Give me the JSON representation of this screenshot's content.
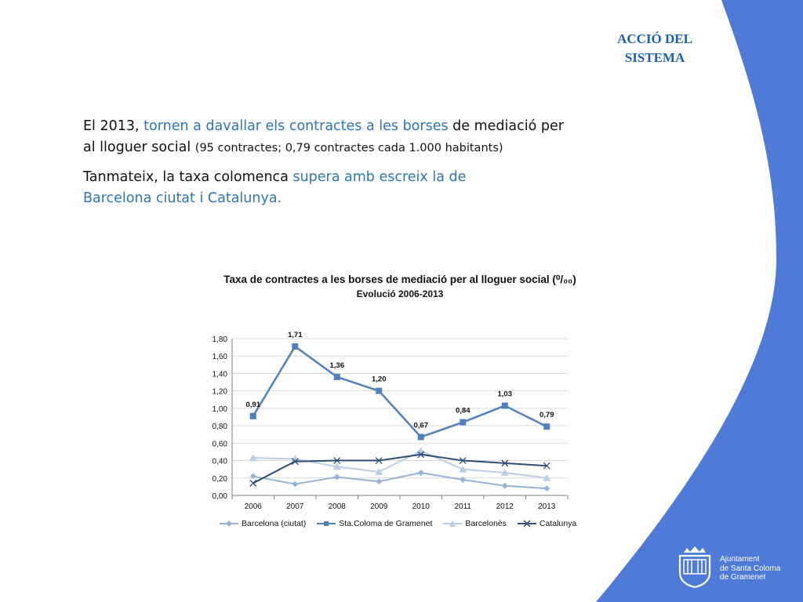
{
  "section_title_line1": "ACCIÓ DEL",
  "section_title_line2": "SISTEMA",
  "intro1": {
    "p1": "El 2013,",
    "h1": "tornen a davallar els contractes a les borses",
    "p2": "de mediació per al lloguer social",
    "small": "(95 contractes; 0,79 contractes cada 1.000 habitants)"
  },
  "intro2": {
    "p1": "Tanmateix, la taxa colomenca",
    "h1": "supera amb escreix la de Barcelona ciutat i Catalunya."
  },
  "chart_title": "Taxa de contractes a les borses de mediació per al lloguer social (⁰/₀₀)",
  "chart_subtitle": "Evolució 2006-2013",
  "logo_text": [
    "Ajuntament",
    "de Santa Coloma",
    "de Gramenet"
  ],
  "colors": {
    "accent_blue": "#4e7bd8",
    "barcelona": "#95b3d7",
    "santa_coloma": "#4f81bd",
    "barcelones": "#b9cde5",
    "catalunya": "#2c4d75"
  },
  "chart_data": {
    "type": "line",
    "categories": [
      "2006",
      "2007",
      "2008",
      "2009",
      "2010",
      "2011",
      "2012",
      "2013"
    ],
    "ylim": [
      0,
      1.8
    ],
    "yticks": [
      "0,00",
      "0,20",
      "0,40",
      "0,60",
      "0,80",
      "1,00",
      "1,20",
      "1,40",
      "1,60",
      "1,80"
    ],
    "grid": true,
    "legend_position": "bottom",
    "series": [
      {
        "name": "Barcelona (ciutat)",
        "marker": "diamond",
        "color": "#95b3d7",
        "values": [
          0.22,
          0.13,
          0.21,
          0.16,
          0.26,
          0.18,
          0.11,
          0.08
        ]
      },
      {
        "name": "Sta.Coloma de Gramenet",
        "marker": "square",
        "color": "#4f81bd",
        "values": [
          0.91,
          1.71,
          1.36,
          1.2,
          0.67,
          0.84,
          1.03,
          0.79
        ],
        "labels": [
          "0,91",
          "1,71",
          "1,36",
          "1,20",
          "0,67",
          "0,84",
          "1,03",
          "0,79"
        ]
      },
      {
        "name": "Barcelonès",
        "marker": "triangle",
        "color": "#b9cde5",
        "values": [
          0.43,
          0.42,
          0.33,
          0.27,
          0.51,
          0.3,
          0.26,
          0.2
        ]
      },
      {
        "name": "Catalunya",
        "marker": "x",
        "color": "#2c4d75",
        "values": [
          0.14,
          0.39,
          0.4,
          0.4,
          0.47,
          0.4,
          0.37,
          0.34
        ]
      }
    ]
  }
}
